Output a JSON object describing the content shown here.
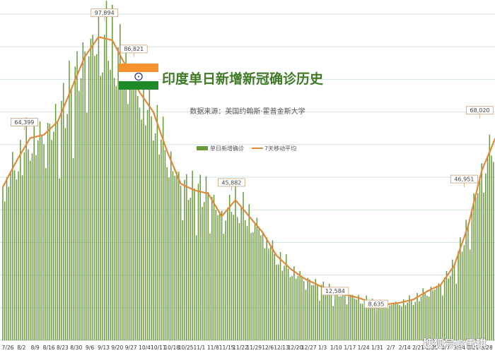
{
  "colors": {
    "bar": "#6b9a3d",
    "line": "#e08a3c",
    "title": "#3f7a25",
    "grid": "#cfe0e6",
    "flag_saffron": "#f7922c",
    "flag_green": "#1e8a2a",
    "flag_chakra": "#1a2f8a"
  },
  "icons": {
    "flag": "india-flag-icon"
  },
  "watermark": "搜狐号@雪琪",
  "chart_data": {
    "type": "bar",
    "title": "印度单日新增新冠确诊历史",
    "subtitle": "数据来源：美国约翰斯·霍普金斯大学",
    "legend": [
      {
        "label": "单日新增确诊",
        "kind": "bar"
      },
      {
        "label": "7天移动平均",
        "kind": "line"
      }
    ],
    "legend_position": "top-center",
    "grid": true,
    "ylim": [
      0,
      100000
    ],
    "x_ticks": [
      "7/26",
      "8/2",
      "8/9",
      "8/16",
      "8/23",
      "8/30",
      "9/6",
      "9/13",
      "9/20",
      "9/27",
      "10/4",
      "10/11",
      "10/18",
      "10/25",
      "11/1",
      "11/8",
      "11/15",
      "11/22",
      "11/29",
      "12/6",
      "12/13",
      "12/20",
      "12/27",
      "1/3",
      "1/10",
      "1/17",
      "1/24",
      "1/31",
      "2/7",
      "2/14",
      "2/21",
      "2/28",
      "3/7",
      "3/14",
      "3/21",
      "3/28"
    ],
    "weekly_avg": [
      47000,
      55000,
      62000,
      63000,
      67000,
      77000,
      87000,
      93000,
      92000,
      84000,
      76000,
      70000,
      58000,
      48000,
      46000,
      45000,
      38000,
      43000,
      38000,
      33000,
      26000,
      22000,
      19000,
      17000,
      15000,
      14000,
      13000,
      11500,
      11000,
      11500,
      12500,
      15000,
      17000,
      23000,
      35000,
      52000,
      62000
    ],
    "series": [
      {
        "name": "单日新增确诊",
        "kind": "bar",
        "values": []
      },
      {
        "name": "7天移动平均",
        "kind": "line",
        "values": []
      }
    ],
    "annotations": [
      {
        "date": "8/6",
        "value": 64399,
        "label": "64,399"
      },
      {
        "date": "9/16",
        "value": 97894,
        "label": "97,894"
      },
      {
        "date": "10/1",
        "value": 86821,
        "label": "86,821"
      },
      {
        "date": "11/20",
        "value": 45882,
        "label": "45,882"
      },
      {
        "date": "1/12",
        "value": 12584,
        "label": "12,584"
      },
      {
        "date": "2/2",
        "value": 8635,
        "label": "8,635"
      },
      {
        "date": "3/19",
        "value": 46951,
        "label": "46,951"
      },
      {
        "date": "3/27",
        "value": 68020,
        "label": "68,020"
      }
    ]
  }
}
